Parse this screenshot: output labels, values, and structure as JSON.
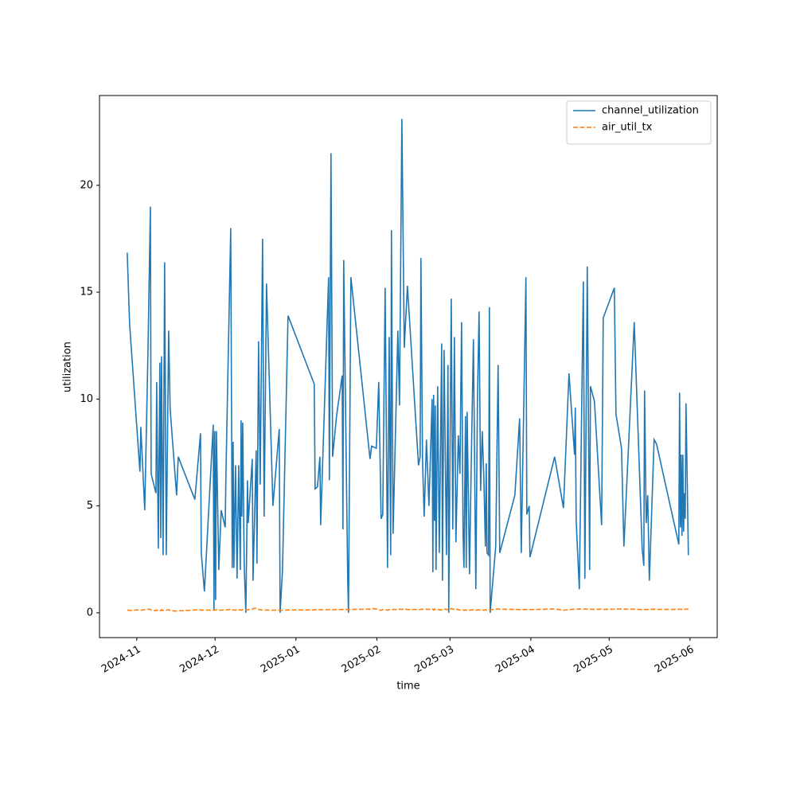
{
  "chart_data": {
    "type": "line",
    "xlabel": "time",
    "ylabel": "utilization",
    "x": [
      "2024-10-28 08:00",
      "2024-10-29 06:00",
      "2024-11-02 05:00",
      "2024-11-02 13:00",
      "2024-11-04 01:00",
      "2024-11-05 06:00",
      "2024-11-06 05:00",
      "2024-11-06 12:00",
      "2024-11-08 08:00",
      "2024-11-08 15:00",
      "2024-11-09 06:00",
      "2024-11-09 20:00",
      "2024-11-10 04:00",
      "2024-11-10 11:00",
      "2024-11-11 02:00",
      "2024-11-11 16:00",
      "2024-11-12 07:00",
      "2024-11-13 05:00",
      "2024-11-13 19:00",
      "2024-11-16 06:00",
      "2024-11-16 21:00",
      "2024-11-23 06:00",
      "2024-11-25 10:00",
      "2024-11-25 17:00",
      "2024-11-26 22:00",
      "2024-11-30 07:00",
      "2024-11-30 14:00",
      "2024-11-30 21:00",
      "2024-12-01 05:00",
      "2024-12-01 12:00",
      "2024-12-02 10:00",
      "2024-12-03 08:00",
      "2024-12-04 21:00",
      "2024-12-05 04:00",
      "2024-12-07 00:00",
      "2024-12-07 14:00",
      "2024-12-07 22:00",
      "2024-12-08 05:00",
      "2024-12-08 20:00",
      "2024-12-09 10:00",
      "2024-12-10 01:00",
      "2024-12-10 16:00",
      "2024-12-10 23:00",
      "2024-12-11 06:00",
      "2024-12-11 14:00",
      "2024-12-12 04:00",
      "2024-12-12 19:00",
      "2024-12-13 10:00",
      "2024-12-13 17:00",
      "2024-12-15 06:00",
      "2024-12-15 13:00",
      "2024-12-16 18:00",
      "2024-12-17 01:00",
      "2024-12-17 16:00",
      "2024-12-18 07:00",
      "2024-12-19 05:00",
      "2024-12-19 19:00",
      "2024-12-20 17:00",
      "2024-12-23 04:00",
      "2024-12-25 14:00",
      "2024-12-25 22:00",
      "2024-12-26 20:00",
      "2024-12-28 23:00",
      "2025-01-08 00:00",
      "2025-01-08 08:00",
      "2025-01-09 06:00",
      "2025-01-10 04:00",
      "2025-01-10 11:00",
      "2025-01-13 12:00",
      "2025-01-13 19:00",
      "2025-01-14 10:00",
      "2025-01-15 01:00",
      "2025-01-16 13:00",
      "2025-01-18 17:00",
      "2025-01-19 00:00",
      "2025-01-19 07:00",
      "2025-01-20 20:00",
      "2025-01-21 03:00",
      "2025-01-22 01:00",
      "2025-01-29 09:00",
      "2025-01-30 00:00",
      "2025-01-31 19:00",
      "2025-02-01 17:00",
      "2025-02-02 15:00",
      "2025-02-03 06:00",
      "2025-02-04 04:00",
      "2025-02-05 02:00",
      "2025-02-05 17:00",
      "2025-02-06 07:00",
      "2025-02-06 14:00",
      "2025-02-07 05:00",
      "2025-02-09 01:00",
      "2025-02-09 16:00",
      "2025-02-10 14:00",
      "2025-02-11 12:00",
      "2025-02-12 17:00",
      "2025-02-16 23:00",
      "2025-02-17 14:00",
      "2025-02-17 21:00",
      "2025-02-18 12:00",
      "2025-02-19 03:00",
      "2025-02-20 00:00",
      "2025-02-20 23:00",
      "2025-02-22 04:00",
      "2025-02-22 11:00",
      "2025-02-22 18:00",
      "2025-02-23 02:00",
      "2025-02-23 09:00",
      "2025-02-23 16:00",
      "2025-02-24 07:00",
      "2025-02-24 22:00",
      "2025-02-25 20:00",
      "2025-02-26 03:00",
      "2025-02-26 18:00",
      "2025-02-27 16:00",
      "2025-02-28 06:00",
      "2025-02-28 13:00",
      "2025-03-01 12:00",
      "2025-03-02 02:00",
      "2025-03-02 17:00",
      "2025-03-03 07:00",
      "2025-03-04 05:00",
      "2025-03-04 20:00",
      "2025-03-05 11:00",
      "2025-03-06 01:00",
      "2025-03-06 09:00",
      "2025-03-06 23:00",
      "2025-03-07 06:00",
      "2025-03-07 14:00",
      "2025-03-08 12:00",
      "2025-03-09 02:00",
      "2025-03-10 00:00",
      "2025-03-10 22:00",
      "2025-03-11 13:00",
      "2025-03-12 04:00",
      "2025-03-12 18:00",
      "2025-03-13 09:00",
      "2025-03-13 23:00",
      "2025-03-14 14:00",
      "2025-03-14 22:00",
      "2025-03-15 05:00",
      "2025-03-15 19:00",
      "2025-03-16 03:00",
      "2025-03-16 10:00",
      "2025-03-18 13:00",
      "2025-03-19 11:00",
      "2025-03-20 02:00",
      "2025-03-25 21:00",
      "2025-03-27 17:00",
      "2025-03-28 08:00",
      "2025-03-30 03:00",
      "2025-03-30 11:00",
      "2025-03-31 09:00",
      "2025-03-31 16:00",
      "2025-04-10 03:00",
      "2025-04-13 12:00",
      "2025-04-15 15:00",
      "2025-04-17 18:00",
      "2025-04-18 01:00",
      "2025-04-18 09:00",
      "2025-04-19 14:00",
      "2025-04-21 03:00",
      "2025-04-21 17:00",
      "2025-04-22 15:00",
      "2025-04-23 13:00",
      "2025-04-23 20:00",
      "2025-04-25 09:00",
      "2025-04-28 03:00",
      "2025-04-28 18:00",
      "2025-05-03 00:00",
      "2025-05-03 15:00",
      "2025-05-05 18:00",
      "2025-05-06 16:00",
      "2025-05-10 15:00",
      "2025-05-13 16:00",
      "2025-05-14 07:00",
      "2025-05-14 14:00",
      "2025-05-15 05:00",
      "2025-05-15 19:00",
      "2025-05-16 10:00",
      "2025-05-18 06:00",
      "2025-05-19 04:00",
      "2025-05-27 17:00",
      "2025-05-28 00:00",
      "2025-05-28 08:00",
      "2025-05-28 15:00",
      "2025-05-28 22:00",
      "2025-05-29 06:00",
      "2025-05-29 13:00",
      "2025-05-29 20:00",
      "2025-05-30 04:00",
      "2025-05-30 11:00",
      "2025-05-31 09:00"
    ],
    "series": [
      {
        "name": "channel_utilization",
        "color": "#1f77b4",
        "dash": "solid",
        "values": [
          16.85,
          13.5,
          6.6,
          8.7,
          4.8,
          12,
          19.0,
          6.5,
          5.6,
          10.8,
          3.0,
          11.7,
          3.5,
          12,
          2.7,
          16.4,
          2.7,
          13.2,
          9.5,
          5.5,
          7.3,
          5.3,
          8.4,
          2.8,
          1.0,
          8.8,
          0.1,
          8.5,
          0.6,
          8.5,
          2.0,
          4.8,
          4.0,
          6.5,
          18.0,
          2.1,
          8.0,
          2.1,
          6.9,
          1.6,
          6.9,
          2.0,
          9.0,
          4.5,
          8.9,
          2.2,
          0.0,
          6.2,
          4.2,
          7.2,
          1.5,
          7.6,
          2.3,
          12.7,
          6.0,
          17.5,
          4.5,
          15.4,
          5.0,
          8.6,
          0.0,
          2.0,
          13.9,
          10.7,
          5.8,
          5.9,
          7.3,
          4.1,
          15.7,
          6.2,
          21.5,
          7.3,
          9.2,
          11.1,
          3.9,
          16.5,
          1.5,
          0.0,
          15.7,
          7.2,
          7.8,
          7.7,
          10.8,
          4.4,
          4.6,
          15.2,
          2.1,
          12.9,
          2.7,
          17.9,
          3.7,
          13.2,
          9.7,
          23.1,
          12.4,
          15.3,
          6.9,
          7.3,
          16.6,
          7.1,
          4.5,
          8.1,
          5.0,
          10.0,
          1.9,
          10.2,
          4.3,
          9.7,
          2.0,
          10.6,
          2.8,
          12.6,
          1.5,
          12.3,
          2.7,
          11.6,
          0.0,
          14.7,
          3.9,
          12.9,
          3.3,
          8.3,
          6.5,
          13.6,
          3.6,
          2.1,
          9.2,
          2.1,
          9.4,
          1.8,
          6.4,
          12.8,
          1.1,
          10.0,
          14.1,
          5.7,
          8.5,
          6.5,
          3.1,
          7.0,
          2.8,
          2.7,
          14.3,
          0.0,
          3.1,
          11.6,
          2.8,
          5.5,
          9.1,
          2.8,
          15.7,
          4.6,
          5.0,
          2.6,
          7.3,
          4.9,
          11.2,
          7.4,
          9.6,
          4.3,
          1.1,
          15.5,
          1.6,
          16.2,
          2.0,
          10.6,
          9.9,
          4.1,
          13.8,
          15.2,
          9.3,
          7.7,
          3.1,
          13.6,
          3.0,
          2.2,
          10.4,
          4.2,
          5.5,
          1.5,
          8.1,
          7.9,
          3.2,
          10.3,
          4.0,
          7.4,
          3.6,
          7.4,
          3.8,
          5.6,
          4.4,
          9.8,
          2.7
        ]
      },
      {
        "name": "air_util_tx",
        "color": "#ff7f0e",
        "dash": "dashed",
        "values": [
          0.13,
          0.11,
          0.14,
          0.12,
          0.15,
          0.17,
          0.16,
          0.12,
          0.1,
          0.13,
          0.09,
          0.12,
          0.1,
          0.14,
          0.11,
          0.13,
          0.12,
          0.15,
          0.1,
          0.08,
          0.09,
          0.13,
          0.14,
          0.12,
          0.13,
          0.12,
          0.14,
          0.13,
          0.12,
          0.15,
          0.13,
          0.12,
          0.14,
          0.13,
          0.16,
          0.12,
          0.14,
          0.13,
          0.12,
          0.15,
          0.13,
          0.14,
          0.12,
          0.13,
          0.15,
          0.16,
          0.14,
          0.13,
          0.15,
          0.17,
          0.2,
          0.21,
          0.19,
          0.16,
          0.14,
          0.13,
          0.12,
          0.13,
          0.12,
          0.13,
          0.12,
          0.12,
          0.13,
          0.13,
          0.15,
          0.14,
          0.15,
          0.14,
          0.15,
          0.16,
          0.15,
          0.14,
          0.16,
          0.15,
          0.16,
          0.15,
          0.16,
          0.15,
          0.16,
          0.17,
          0.2,
          0.18,
          0.13,
          0.12,
          0.15,
          0.14,
          0.12,
          0.15,
          0.14,
          0.13,
          0.16,
          0.15,
          0.17,
          0.16,
          0.18,
          0.15,
          0.16,
          0.15,
          0.17,
          0.16,
          0.15,
          0.17,
          0.16,
          0.15,
          0.17,
          0.13,
          0.18,
          0.15,
          0.14,
          0.16,
          0.15,
          0.13,
          0.17,
          0.18,
          0.15,
          0.16,
          0.12,
          0.2,
          0.18,
          0.14,
          0.17,
          0.15,
          0.13,
          0.12,
          0.14,
          0.11,
          0.13,
          0.12,
          0.14,
          0.12,
          0.13,
          0.14,
          0.12,
          0.13,
          0.14,
          0.12,
          0.13,
          0.12,
          0.14,
          0.13,
          0.12,
          0.13,
          0.15,
          0.14,
          0.17,
          0.18,
          0.17,
          0.16,
          0.15,
          0.14,
          0.16,
          0.15,
          0.14,
          0.15,
          0.18,
          0.12,
          0.15,
          0.17,
          0.18,
          0.16,
          0.18,
          0.17,
          0.18,
          0.17,
          0.18,
          0.17,
          0.16,
          0.17,
          0.16,
          0.17,
          0.18,
          0.18,
          0.17,
          0.17,
          0.15,
          0.16,
          0.15,
          0.16,
          0.15,
          0.16,
          0.17,
          0.16,
          0.16,
          0.17,
          0.16,
          0.17,
          0.16,
          0.17,
          0.16,
          0.17,
          0.16,
          0.17,
          0.17
        ]
      }
    ],
    "xlim": [
      "2024-10-17 17:00",
      "2025-06-11 10:00"
    ],
    "xticks": [
      {
        "value": "2024-11-01 00:00",
        "label": "2024-11"
      },
      {
        "value": "2024-12-01 00:00",
        "label": "2024-12"
      },
      {
        "value": "2025-01-01 00:00",
        "label": "2025-01"
      },
      {
        "value": "2025-02-01 00:00",
        "label": "2025-02"
      },
      {
        "value": "2025-03-01 00:00",
        "label": "2025-03"
      },
      {
        "value": "2025-04-01 00:00",
        "label": "2025-04"
      },
      {
        "value": "2025-05-01 00:00",
        "label": "2025-05"
      },
      {
        "value": "2025-06-01 00:00",
        "label": "2025-06"
      }
    ],
    "ylim": [
      -1.16,
      24.2
    ],
    "yticks": [
      0,
      5,
      10,
      15,
      20
    ],
    "grid": false,
    "legend": "upper-right"
  }
}
